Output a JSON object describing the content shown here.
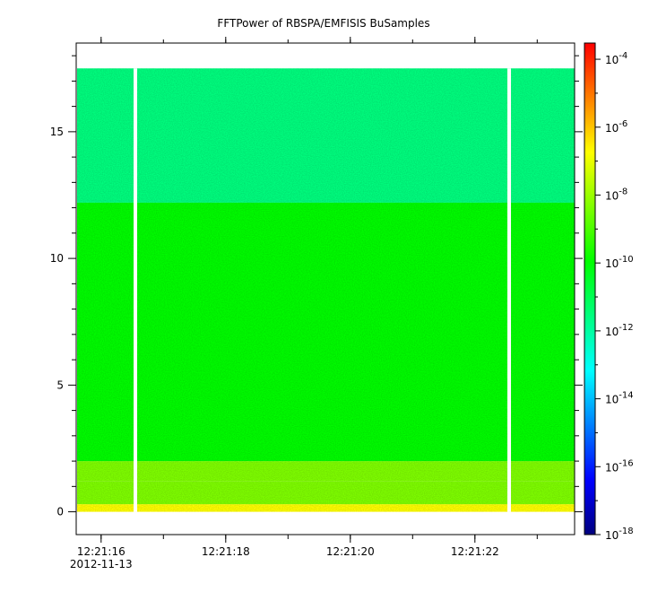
{
  "chart_data": {
    "type": "heatmap",
    "title": "FFTPower of RBSPA/EMFISIS  BuSamples",
    "xlabel": "",
    "ylabel": "",
    "x_axis": {
      "scale": "time",
      "start": "12:21:15.6",
      "end": "12:21:23.6",
      "ticks": [
        "12:21:16",
        "12:21:18",
        "12:21:20",
        "12:21:22"
      ],
      "tick_sublabels": [
        "2012-11-13",
        "",
        "",
        ""
      ],
      "minor_tick_step_seconds": 1
    },
    "y_axis": {
      "scale": "linear",
      "range": [
        -0.9,
        18.5
      ],
      "ticks": [
        0,
        5,
        10,
        15
      ],
      "data_extent": [
        0,
        17.5
      ]
    },
    "colorbar": {
      "scale": "log",
      "range": [
        "1e-18",
        "3e-4"
      ],
      "ticks": [
        {
          "base": "10",
          "exp": "-4"
        },
        {
          "base": "10",
          "exp": "-6"
        },
        {
          "base": "10",
          "exp": "-8"
        },
        {
          "base": "10",
          "exp": "-10"
        },
        {
          "base": "10",
          "exp": "-12"
        },
        {
          "base": "10",
          "exp": "-14"
        },
        {
          "base": "10",
          "exp": "-16"
        },
        {
          "base": "10",
          "exp": "-18"
        }
      ],
      "colors": [
        "#00007f",
        "#0000ff",
        "#007fff",
        "#00ffff",
        "#00ff7f",
        "#00ff00",
        "#7fff00",
        "#ffff00",
        "#ff7f00",
        "#ff0000"
      ]
    },
    "bands": [
      {
        "y_from": 0,
        "y_to": 0.3,
        "log10_power": -7.3
      },
      {
        "y_from": 0.3,
        "y_to": 1.2,
        "log10_power": -8.0
      },
      {
        "y_from": 1.2,
        "y_to": 2.0,
        "log10_power": -8.8
      },
      {
        "y_from": 2.0,
        "y_to": 12.2,
        "log10_power": -10.6
      },
      {
        "y_from": 12.2,
        "y_to": 17.5,
        "log10_power": -12.2
      }
    ],
    "data_gaps_seconds": [
      0.95,
      6.95
    ],
    "grid": false,
    "legend": "colorbar-right"
  }
}
